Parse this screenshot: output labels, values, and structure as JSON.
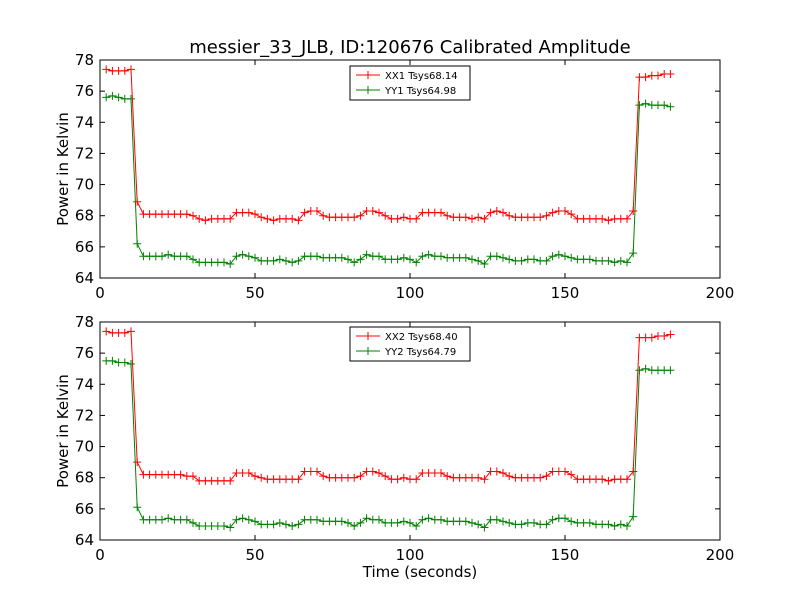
{
  "figure": {
    "title": "messier_33_JLB, ID:120676 Calibrated Amplitude"
  },
  "chart_data": [
    {
      "type": "line",
      "title": "messier_33_JLB, ID:120676 Calibrated Amplitude",
      "xlabel": "",
      "ylabel": "Power in Kelvin",
      "xlim": [
        0,
        200
      ],
      "ylim": [
        64,
        78
      ],
      "xticks": [
        "0",
        "50",
        "100",
        "150",
        "200"
      ],
      "yticks": [
        "64",
        "66",
        "68",
        "70",
        "72",
        "74",
        "76",
        "78"
      ],
      "legend_position": "top-center",
      "grid": false,
      "series": [
        {
          "name": "XX1 Tsys68.14",
          "color": "#ff0000",
          "x": [
            2,
            4,
            6,
            8,
            10,
            12,
            14,
            16,
            18,
            20,
            22,
            24,
            26,
            28,
            30,
            32,
            34,
            36,
            38,
            40,
            42,
            44,
            46,
            48,
            50,
            52,
            54,
            56,
            58,
            60,
            62,
            64,
            66,
            68,
            70,
            72,
            74,
            76,
            78,
            80,
            82,
            84,
            86,
            88,
            90,
            92,
            94,
            96,
            98,
            100,
            102,
            104,
            106,
            108,
            110,
            112,
            114,
            116,
            118,
            120,
            122,
            124,
            126,
            128,
            130,
            132,
            134,
            136,
            138,
            140,
            142,
            144,
            146,
            148,
            150,
            152,
            154,
            156,
            158,
            160,
            162,
            164,
            166,
            168,
            170,
            172,
            174,
            176,
            178,
            180,
            182,
            184
          ],
          "y": [
            77.4,
            77.3,
            77.3,
            77.3,
            77.4,
            68.9,
            68.1,
            68.1,
            68.1,
            68.1,
            68.1,
            68.1,
            68.1,
            68.1,
            68.0,
            67.8,
            67.7,
            67.8,
            67.8,
            67.8,
            67.8,
            68.2,
            68.2,
            68.2,
            68.1,
            67.9,
            67.8,
            67.7,
            67.8,
            67.8,
            67.8,
            67.7,
            68.2,
            68.3,
            68.3,
            68.0,
            67.9,
            67.9,
            67.9,
            67.9,
            67.9,
            68.0,
            68.3,
            68.3,
            68.2,
            68.0,
            67.8,
            67.8,
            67.9,
            67.8,
            67.8,
            68.2,
            68.2,
            68.2,
            68.2,
            68.0,
            67.9,
            67.9,
            67.9,
            67.8,
            67.9,
            67.8,
            68.2,
            68.3,
            68.2,
            68.0,
            67.9,
            67.9,
            67.9,
            67.9,
            67.9,
            68.0,
            68.2,
            68.3,
            68.3,
            68.1,
            67.8,
            67.8,
            67.8,
            67.8,
            67.8,
            67.7,
            67.8,
            67.8,
            67.8,
            68.3,
            76.9,
            76.9,
            77.0,
            77.0,
            77.1,
            77.1
          ]
        },
        {
          "name": "YY1 Tsys64.98",
          "color": "#008000",
          "x": [
            2,
            4,
            6,
            8,
            10,
            12,
            14,
            16,
            18,
            20,
            22,
            24,
            26,
            28,
            30,
            32,
            34,
            36,
            38,
            40,
            42,
            44,
            46,
            48,
            50,
            52,
            54,
            56,
            58,
            60,
            62,
            64,
            66,
            68,
            70,
            72,
            74,
            76,
            78,
            80,
            82,
            84,
            86,
            88,
            90,
            92,
            94,
            96,
            98,
            100,
            102,
            104,
            106,
            108,
            110,
            112,
            114,
            116,
            118,
            120,
            122,
            124,
            126,
            128,
            130,
            132,
            134,
            136,
            138,
            140,
            142,
            144,
            146,
            148,
            150,
            152,
            154,
            156,
            158,
            160,
            162,
            164,
            166,
            168,
            170,
            172,
            174,
            176,
            178,
            180,
            182,
            184
          ],
          "y": [
            75.6,
            75.7,
            75.6,
            75.5,
            75.5,
            66.2,
            65.4,
            65.4,
            65.4,
            65.4,
            65.5,
            65.4,
            65.4,
            65.4,
            65.2,
            65.0,
            65.0,
            65.0,
            65.0,
            65.0,
            64.9,
            65.4,
            65.5,
            65.4,
            65.3,
            65.1,
            65.1,
            65.1,
            65.2,
            65.1,
            65.0,
            65.1,
            65.4,
            65.4,
            65.4,
            65.3,
            65.3,
            65.3,
            65.3,
            65.2,
            65.0,
            65.2,
            65.5,
            65.4,
            65.4,
            65.2,
            65.2,
            65.2,
            65.3,
            65.2,
            65.0,
            65.4,
            65.5,
            65.4,
            65.4,
            65.3,
            65.3,
            65.3,
            65.3,
            65.2,
            65.1,
            64.9,
            65.4,
            65.4,
            65.3,
            65.2,
            65.1,
            65.1,
            65.2,
            65.2,
            65.1,
            65.1,
            65.4,
            65.5,
            65.4,
            65.3,
            65.2,
            65.2,
            65.2,
            65.1,
            65.1,
            65.1,
            65.0,
            65.1,
            65.0,
            65.6,
            75.1,
            75.2,
            75.1,
            75.1,
            75.1,
            75.0
          ]
        }
      ]
    },
    {
      "type": "line",
      "title": "",
      "xlabel": "Time (seconds)",
      "ylabel": "Power in Kelvin",
      "xlim": [
        0,
        200
      ],
      "ylim": [
        64,
        78
      ],
      "xticks": [
        "0",
        "50",
        "100",
        "150",
        "200"
      ],
      "yticks": [
        "64",
        "66",
        "68",
        "70",
        "72",
        "74",
        "76",
        "78"
      ],
      "legend_position": "top-center",
      "grid": false,
      "series": [
        {
          "name": "XX2 Tsys68.40",
          "color": "#ff0000",
          "x": [
            2,
            4,
            6,
            8,
            10,
            12,
            14,
            16,
            18,
            20,
            22,
            24,
            26,
            28,
            30,
            32,
            34,
            36,
            38,
            40,
            42,
            44,
            46,
            48,
            50,
            52,
            54,
            56,
            58,
            60,
            62,
            64,
            66,
            68,
            70,
            72,
            74,
            76,
            78,
            80,
            82,
            84,
            86,
            88,
            90,
            92,
            94,
            96,
            98,
            100,
            102,
            104,
            106,
            108,
            110,
            112,
            114,
            116,
            118,
            120,
            122,
            124,
            126,
            128,
            130,
            132,
            134,
            136,
            138,
            140,
            142,
            144,
            146,
            148,
            150,
            152,
            154,
            156,
            158,
            160,
            162,
            164,
            166,
            168,
            170,
            172,
            174,
            176,
            178,
            180,
            182,
            184
          ],
          "y": [
            77.4,
            77.3,
            77.3,
            77.3,
            77.4,
            69.0,
            68.2,
            68.2,
            68.2,
            68.2,
            68.2,
            68.2,
            68.2,
            68.1,
            68.1,
            67.8,
            67.8,
            67.8,
            67.8,
            67.8,
            67.8,
            68.3,
            68.3,
            68.3,
            68.1,
            68.0,
            67.9,
            67.9,
            67.9,
            67.9,
            67.9,
            67.9,
            68.4,
            68.4,
            68.4,
            68.1,
            68.0,
            68.0,
            68.0,
            68.0,
            68.0,
            68.1,
            68.4,
            68.4,
            68.3,
            68.1,
            67.9,
            67.9,
            68.0,
            67.9,
            67.9,
            68.3,
            68.3,
            68.3,
            68.3,
            68.1,
            68.0,
            68.0,
            68.0,
            68.0,
            68.0,
            67.9,
            68.4,
            68.4,
            68.3,
            68.1,
            68.0,
            68.0,
            68.0,
            68.0,
            68.0,
            68.1,
            68.4,
            68.4,
            68.4,
            68.2,
            67.9,
            67.9,
            67.9,
            67.9,
            67.9,
            67.8,
            67.9,
            67.9,
            67.9,
            68.4,
            77.0,
            77.0,
            77.0,
            77.1,
            77.1,
            77.2
          ]
        },
        {
          "name": "YY2 Tsys64.79",
          "color": "#008000",
          "x": [
            2,
            4,
            6,
            8,
            10,
            12,
            14,
            16,
            18,
            20,
            22,
            24,
            26,
            28,
            30,
            32,
            34,
            36,
            38,
            40,
            42,
            44,
            46,
            48,
            50,
            52,
            54,
            56,
            58,
            60,
            62,
            64,
            66,
            68,
            70,
            72,
            74,
            76,
            78,
            80,
            82,
            84,
            86,
            88,
            90,
            92,
            94,
            96,
            98,
            100,
            102,
            104,
            106,
            108,
            110,
            112,
            114,
            116,
            118,
            120,
            122,
            124,
            126,
            128,
            130,
            132,
            134,
            136,
            138,
            140,
            142,
            144,
            146,
            148,
            150,
            152,
            154,
            156,
            158,
            160,
            162,
            164,
            166,
            168,
            170,
            172,
            174,
            176,
            178,
            180,
            182,
            184
          ],
          "y": [
            75.5,
            75.5,
            75.4,
            75.4,
            75.3,
            66.1,
            65.3,
            65.3,
            65.3,
            65.3,
            65.4,
            65.3,
            65.3,
            65.3,
            65.1,
            64.9,
            64.9,
            64.9,
            64.9,
            64.9,
            64.8,
            65.3,
            65.4,
            65.3,
            65.2,
            65.0,
            65.0,
            65.0,
            65.1,
            65.0,
            64.9,
            65.0,
            65.3,
            65.3,
            65.3,
            65.2,
            65.2,
            65.2,
            65.2,
            65.1,
            64.9,
            65.1,
            65.4,
            65.3,
            65.3,
            65.1,
            65.1,
            65.1,
            65.2,
            65.1,
            64.9,
            65.3,
            65.4,
            65.3,
            65.3,
            65.2,
            65.2,
            65.2,
            65.2,
            65.1,
            65.0,
            64.8,
            65.3,
            65.3,
            65.2,
            65.1,
            65.0,
            65.0,
            65.1,
            65.1,
            65.0,
            65.0,
            65.3,
            65.4,
            65.4,
            65.2,
            65.1,
            65.1,
            65.1,
            65.0,
            65.0,
            65.0,
            64.9,
            65.0,
            64.9,
            65.5,
            74.9,
            75.0,
            74.9,
            74.9,
            74.9,
            74.9
          ]
        }
      ]
    }
  ]
}
